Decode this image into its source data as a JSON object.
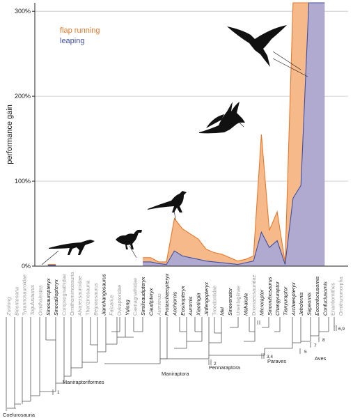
{
  "chart_data": {
    "type": "area",
    "ylabel": "performance gain",
    "y_unit": "%",
    "ylim": [
      0,
      310
    ],
    "yticks": [
      0,
      100,
      200,
      300
    ],
    "ytick_labels": [
      "0%",
      "100%",
      "200%",
      "300%"
    ],
    "grid": true,
    "legend_position": "top-left",
    "series": [
      {
        "name": "flap running",
        "color": "#e8772a",
        "fill": "#f5b98a"
      },
      {
        "name": "leaping",
        "color": "#3f4ea3",
        "fill": "#a9a8d8"
      }
    ],
    "taxa": [
      {
        "name": "Zuolong",
        "italic": true,
        "grey": true
      },
      {
        "name": "Bicentenaria",
        "italic": true,
        "grey": true
      },
      {
        "name": "Tyrannosauroidae",
        "italic": false,
        "grey": true
      },
      {
        "name": "Tugulusaurus",
        "italic": true,
        "grey": true
      },
      {
        "name": "Ornitholestes",
        "italic": true,
        "grey": true
      },
      {
        "name": "Sinosauropteryx",
        "italic": true,
        "grey": false
      },
      {
        "name": "Sinocalliopteryx",
        "italic": true,
        "grey": false
      },
      {
        "name": "Compsognathidae",
        "italic": false,
        "grey": true
      },
      {
        "name": "Ornithomimosauria",
        "italic": false,
        "grey": true
      },
      {
        "name": "Alvarezsauroidae",
        "italic": false,
        "grey": true
      },
      {
        "name": "Therizinosauria",
        "italic": false,
        "grey": true
      },
      {
        "name": "Beipiaosaurus",
        "italic": true,
        "grey": true
      },
      {
        "name": "Jianchangosaurus",
        "italic": true,
        "grey": false
      },
      {
        "name": "Falcarius",
        "italic": true,
        "grey": true
      },
      {
        "name": "Oviraptoridae",
        "italic": false,
        "grey": true
      },
      {
        "name": "Yulong",
        "italic": true,
        "grey": false
      },
      {
        "name": "Caenagnathidae",
        "italic": false,
        "grey": true
      },
      {
        "name": "Similicaudipteryx",
        "italic": true,
        "grey": false
      },
      {
        "name": "Caudipteryx",
        "italic": true,
        "grey": false
      },
      {
        "name": "Avimimus",
        "italic": true,
        "grey": true
      },
      {
        "name": "Protarchaeopteryx",
        "italic": true,
        "grey": false
      },
      {
        "name": "Anchiornis",
        "italic": true,
        "grey": false
      },
      {
        "name": "Eosinopteryx",
        "italic": true,
        "grey": false
      },
      {
        "name": "Aurornis",
        "italic": true,
        "grey": false
      },
      {
        "name": "Xiaotingia",
        "italic": true,
        "grey": false
      },
      {
        "name": "Jinfengopteryx",
        "italic": true,
        "grey": false
      },
      {
        "name": "Troodontidae",
        "italic": false,
        "grey": true
      },
      {
        "name": "Mei",
        "italic": true,
        "grey": false
      },
      {
        "name": "Sinovenator",
        "italic": true,
        "grey": false
      },
      {
        "name": "Unenlagiinae",
        "italic": false,
        "grey": true
      },
      {
        "name": "Mahakala",
        "italic": true,
        "grey": false
      },
      {
        "name": "Dromaeosauridae",
        "italic": false,
        "grey": true
      },
      {
        "name": "Microraptor",
        "italic": true,
        "grey": false
      },
      {
        "name": "Sinornithosaurus",
        "italic": true,
        "grey": false
      },
      {
        "name": "Changyuraptor",
        "italic": true,
        "grey": false
      },
      {
        "name": "Tianyuraptor",
        "italic": true,
        "grey": false
      },
      {
        "name": "Archaeopteryx",
        "italic": true,
        "grey": false
      },
      {
        "name": "Jeholornis",
        "italic": true,
        "grey": false
      },
      {
        "name": "Sapeornis",
        "italic": true,
        "grey": false
      },
      {
        "name": "Eoconfuciusornis",
        "italic": true,
        "grey": false
      },
      {
        "name": "Confuciusornis",
        "italic": true,
        "grey": false
      },
      {
        "name": "Enantiornithes",
        "italic": false,
        "grey": true
      },
      {
        "name": "Ornithuromorpha",
        "italic": false,
        "grey": true
      }
    ],
    "flap_running_pct": [
      null,
      null,
      null,
      null,
      null,
      2,
      2,
      null,
      null,
      null,
      null,
      null,
      4,
      null,
      null,
      10,
      null,
      10,
      10,
      5,
      5,
      56,
      44,
      38,
      32,
      20,
      16,
      14,
      10,
      6,
      8,
      12,
      155,
      42,
      64,
      4,
      310,
      310,
      310,
      310,
      310,
      null,
      null
    ],
    "leaping_pct": [
      null,
      null,
      null,
      null,
      null,
      1,
      1,
      null,
      null,
      null,
      null,
      null,
      2,
      null,
      null,
      5,
      null,
      5,
      5,
      3,
      2,
      18,
      12,
      10,
      8,
      6,
      5,
      4,
      3,
      2,
      4,
      6,
      40,
      22,
      30,
      2,
      80,
      95,
      310,
      310,
      310,
      null,
      null
    ],
    "clades": [
      "Coelurosauria",
      "Maniraptoriformes",
      "Maniraptora",
      "Pennaraptora",
      "Paraves",
      "Aves"
    ],
    "node_numbers": [
      "1",
      "2",
      "3,4",
      "5",
      "7",
      "8",
      "6,9"
    ]
  }
}
